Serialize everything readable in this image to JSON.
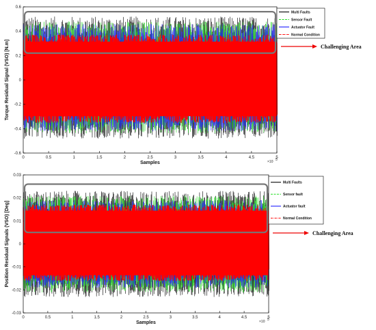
{
  "chart_data": [
    {
      "type": "line",
      "xlabel": "Samples",
      "ylabel": "Torque Residual Signal (VSO) [N.m]",
      "x_multiplier": "×10",
      "x_multiplier_exp": "5",
      "xlim": [
        0,
        5
      ],
      "ylim": [
        -0.6,
        0.6
      ],
      "x_ticks": [
        "0",
        "0.5",
        "1",
        "1.5",
        "2",
        "2.5",
        "3",
        "3.5",
        "4",
        "4.5",
        "5"
      ],
      "y_ticks": [
        "0.6",
        "0.4",
        "0.2",
        "0",
        "-0.2",
        "-0.4",
        "-0.6"
      ],
      "legend_position": "top-right",
      "series": [
        {
          "name": "Multi Faults",
          "color": "#000000",
          "style": "solid",
          "band_range": [
            -0.48,
            0.52
          ]
        },
        {
          "name": "Sensor Fault",
          "color": "#22dd22",
          "style": "dashed",
          "band_range": [
            -0.44,
            0.48
          ]
        },
        {
          "name": "Actuator Fault",
          "color": "#1f1fff",
          "style": "solid",
          "band_range": [
            -0.42,
            0.46
          ]
        },
        {
          "name": "Normal Condition",
          "color": "#ff0000",
          "style": "dash-dot",
          "band_range": [
            -0.35,
            0.37
          ]
        }
      ],
      "highlight_yrange": [
        0.22,
        0.56
      ],
      "annotation": "Challenging Area"
    },
    {
      "type": "line",
      "xlabel": "Samples",
      "ylabel": "Position Residual Signals (VSO) [Deg]",
      "x_multiplier": "×10",
      "x_multiplier_exp": "5",
      "xlim": [
        0,
        5
      ],
      "ylim": [
        -0.03,
        0.03
      ],
      "x_ticks": [
        "0",
        "0.5",
        "1",
        "1.5",
        "2",
        "2.5",
        "3",
        "3.5",
        "4",
        "4.5",
        "5"
      ],
      "y_ticks": [
        "0.03",
        "0.02",
        "0.01",
        "0",
        "-0.01",
        "-0.02",
        "-0.03"
      ],
      "legend_position": "top-right",
      "series": [
        {
          "name": "Multi Faults",
          "color": "#000000",
          "style": "solid",
          "band_range": [
            -0.023,
            0.023
          ]
        },
        {
          "name": "Sensor fault",
          "color": "#22dd22",
          "style": "dashed",
          "band_range": [
            -0.021,
            0.021
          ]
        },
        {
          "name": "Actuator fault",
          "color": "#1f1fff",
          "style": "solid",
          "band_range": [
            -0.019,
            0.019
          ]
        },
        {
          "name": "Normal Condition",
          "color": "#ff0000",
          "style": "dash-dot",
          "band_range": [
            -0.016,
            0.017
          ]
        }
      ],
      "highlight_yrange": [
        0.005,
        0.026
      ],
      "annotation": "Challenging Area"
    }
  ]
}
